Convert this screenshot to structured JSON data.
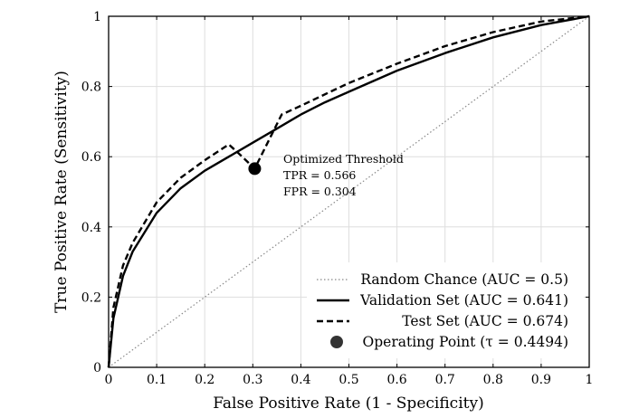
{
  "chart_data": {
    "type": "line",
    "xlabel": "False Positive Rate (1 - Specificity)",
    "ylabel": "True Positive Rate (Sensitivity)",
    "xlim": [
      0,
      1
    ],
    "ylim": [
      0,
      1
    ],
    "x_ticks": [
      "0",
      "0.1",
      "0.2",
      "0.3",
      "0.4",
      "0.5",
      "0.6",
      "0.7",
      "0.8",
      "0.9",
      "1"
    ],
    "y_ticks": [
      "0",
      "0.2",
      "0.4",
      "0.6",
      "0.8",
      "1"
    ],
    "grid": true,
    "legend_position": "bottom-right",
    "series": [
      {
        "name": "Random Chance (AUC = 0.5)",
        "style": "dotted",
        "color": "#888888",
        "x": [
          0,
          1
        ],
        "y": [
          0,
          1
        ]
      },
      {
        "name": "Validation Set (AUC = 0.641)",
        "style": "solid",
        "color": "#000000",
        "x": [
          0,
          0.01,
          0.03,
          0.05,
          0.1,
          0.15,
          0.2,
          0.25,
          0.3,
          0.35,
          0.4,
          0.45,
          0.5,
          0.6,
          0.7,
          0.8,
          0.9,
          1.0
        ],
        "y": [
          0,
          0.14,
          0.26,
          0.33,
          0.44,
          0.51,
          0.56,
          0.6,
          0.64,
          0.68,
          0.72,
          0.755,
          0.785,
          0.845,
          0.895,
          0.94,
          0.975,
          1.0
        ]
      },
      {
        "name": "Test Set (AUC = 0.674)",
        "style": "dashed",
        "color": "#000000",
        "x": [
          0,
          0.01,
          0.03,
          0.05,
          0.1,
          0.15,
          0.2,
          0.25,
          0.27,
          0.304,
          0.36,
          0.4,
          0.5,
          0.6,
          0.7,
          0.8,
          0.9,
          1.0
        ],
        "y": [
          0,
          0.17,
          0.29,
          0.355,
          0.47,
          0.54,
          0.59,
          0.635,
          0.61,
          0.566,
          0.72,
          0.745,
          0.81,
          0.865,
          0.915,
          0.955,
          0.985,
          1.0
        ]
      }
    ],
    "operating_point": {
      "name": "Operating Point (τ = 0.4494)",
      "x": 0.304,
      "y": 0.566,
      "color": "#000000"
    },
    "annotation": {
      "lines": [
        "Optimized Threshold",
        "TPR = 0.566",
        "FPR = 0.304"
      ]
    }
  }
}
